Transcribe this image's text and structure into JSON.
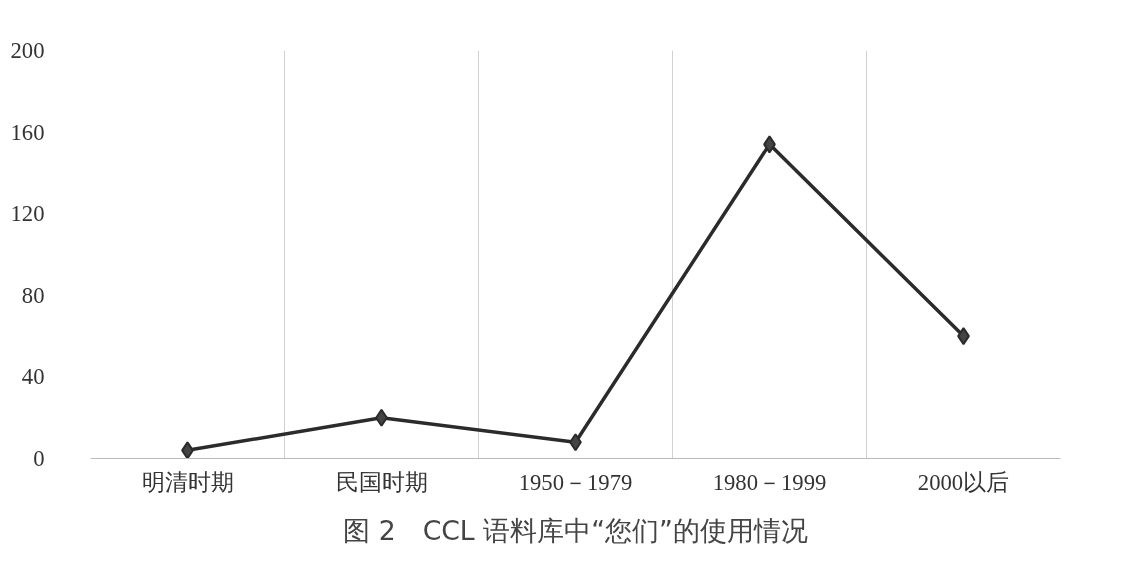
{
  "chart_data": {
    "type": "line",
    "title": "图 2　CCL 语料库中“您们”的使用情况",
    "categories": [
      "明清时期",
      "民国时期",
      "1950－1979",
      "1980－1999",
      "2000以后"
    ],
    "series": [
      {
        "color": "#2b2b2b",
        "values": [
          4,
          20,
          8,
          154,
          60
        ]
      }
    ],
    "ylim": [
      0,
      200
    ],
    "yticks": [
      0,
      40,
      80,
      120,
      160,
      200
    ],
    "grid": "x",
    "marker": "diamond",
    "line_style": "solid"
  }
}
